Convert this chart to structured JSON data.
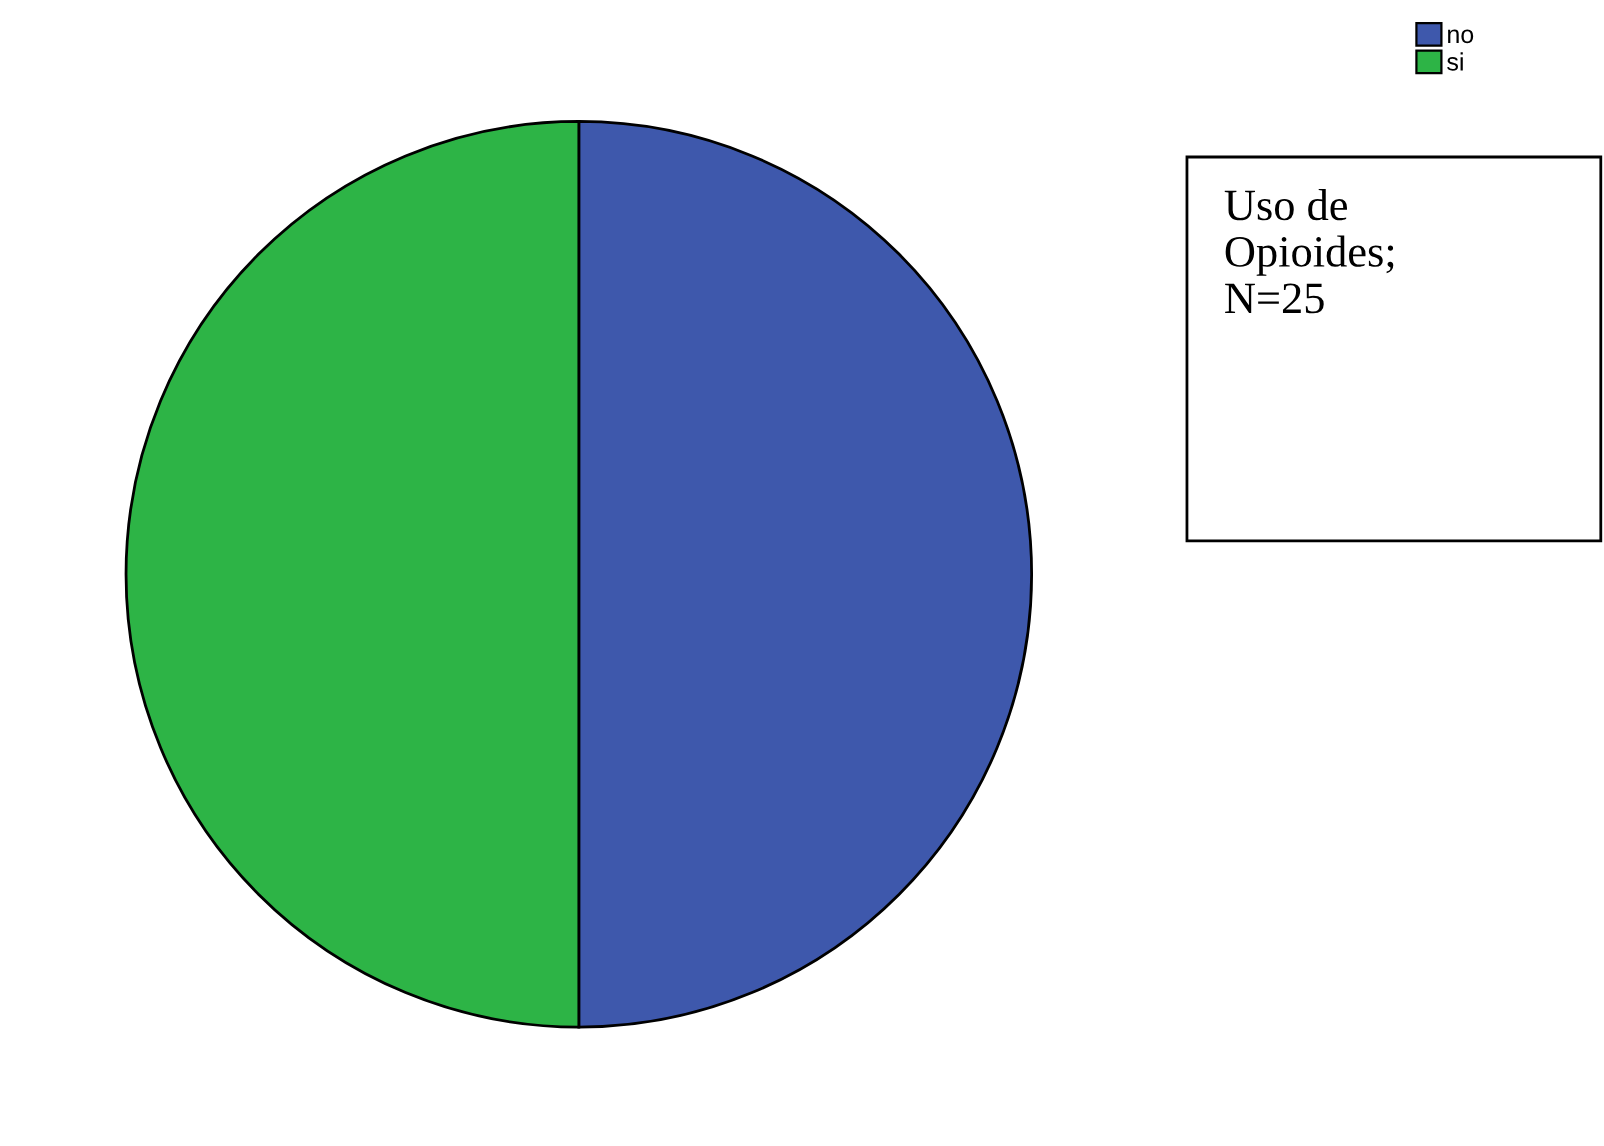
{
  "chart_data": {
    "type": "pie",
    "categories": [
      "no",
      "si"
    ],
    "values": [
      50,
      50
    ],
    "colors": [
      "#3e58ac",
      "#2db446"
    ],
    "annotations": [
      "Uso de\nOpioides;\nN=25"
    ],
    "legend": "top right"
  }
}
